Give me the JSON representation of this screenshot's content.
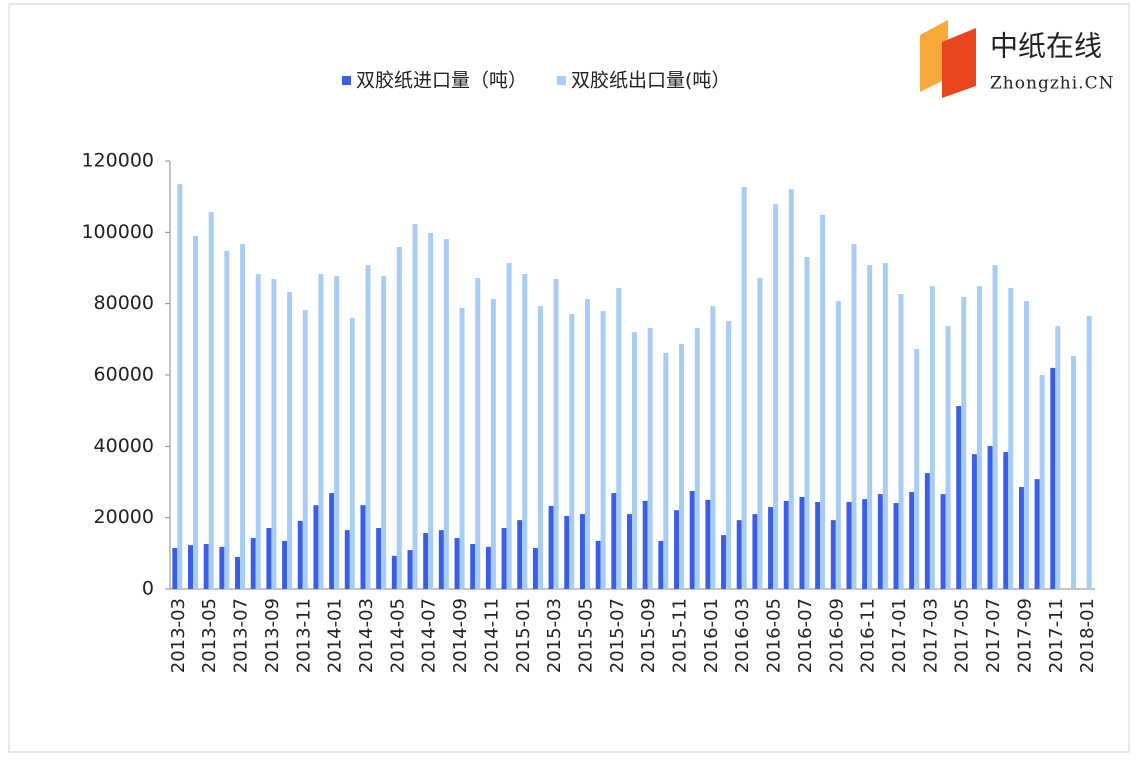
{
  "chart_data": {
    "type": "bar",
    "logo": {
      "name": "中纸在线",
      "url": "Zhongzhi.CN"
    },
    "categories": [
      "2013-03",
      null,
      "2013-05",
      null,
      "2013-07",
      null,
      "2013-09",
      null,
      "2013-11",
      null,
      "2014-01",
      null,
      "2014-03",
      null,
      "2014-05",
      null,
      "2014-07",
      null,
      "2014-09",
      null,
      "2014-11",
      null,
      "2015-01",
      null,
      "2015-03",
      null,
      "2015-05",
      null,
      "2015-07",
      null,
      "2015-09",
      null,
      "2015-11",
      null,
      "2016-01",
      null,
      "2016-03",
      null,
      "2016-05",
      null,
      "2016-07",
      null,
      "2016-09",
      null,
      "2016-11",
      null,
      "2017-01",
      null,
      "2017-03",
      null,
      "2017-05",
      null,
      "2017-07",
      null,
      "2017-09",
      null,
      "2017-11",
      null,
      "2018-01"
    ],
    "series": [
      {
        "name": "双胶纸进口量（吨）",
        "color": "#3b5ee6",
        "values": [
          11500,
          12300,
          12600,
          11800,
          9000,
          14300,
          17100,
          13500,
          19100,
          23500,
          26900,
          16500,
          23500,
          17100,
          9300,
          10900,
          15700,
          16500,
          14300,
          12600,
          11800,
          17100,
          19300,
          11500,
          23300,
          20500,
          21000,
          13500,
          26900,
          21000,
          24700,
          13500,
          22100,
          27500,
          25000,
          15100,
          19300,
          21000,
          23000,
          24700,
          25800,
          24400,
          19300,
          24400,
          25200,
          26600,
          24100,
          27200,
          32500,
          26600,
          51300,
          37800,
          40100,
          38400,
          28600,
          30800,
          62000,
          null,
          null
        ]
      },
      {
        "name": "双胶纸出口量(吨）",
        "color": "#a8cdf5",
        "values": [
          113500,
          99000,
          105700,
          94800,
          96700,
          88300,
          86900,
          83300,
          78200,
          88300,
          87700,
          76000,
          90800,
          87700,
          95900,
          102300,
          99800,
          98100,
          78800,
          87200,
          81300,
          91400,
          88300,
          79300,
          86900,
          77100,
          81300,
          77900,
          84400,
          72000,
          73200,
          66200,
          68700,
          73200,
          79300,
          75100,
          112700,
          87200,
          107900,
          112100,
          93100,
          104900,
          80700,
          96700,
          90800,
          91400,
          82700,
          67300,
          84900,
          73700,
          81900,
          84900,
          90800,
          84400,
          80700,
          60000,
          73700,
          65300,
          76500
        ]
      }
    ],
    "ylim": [
      0,
      120000
    ],
    "yticks": [
      0,
      20000,
      40000,
      60000,
      80000,
      100000,
      120000
    ],
    "legend": "top"
  }
}
